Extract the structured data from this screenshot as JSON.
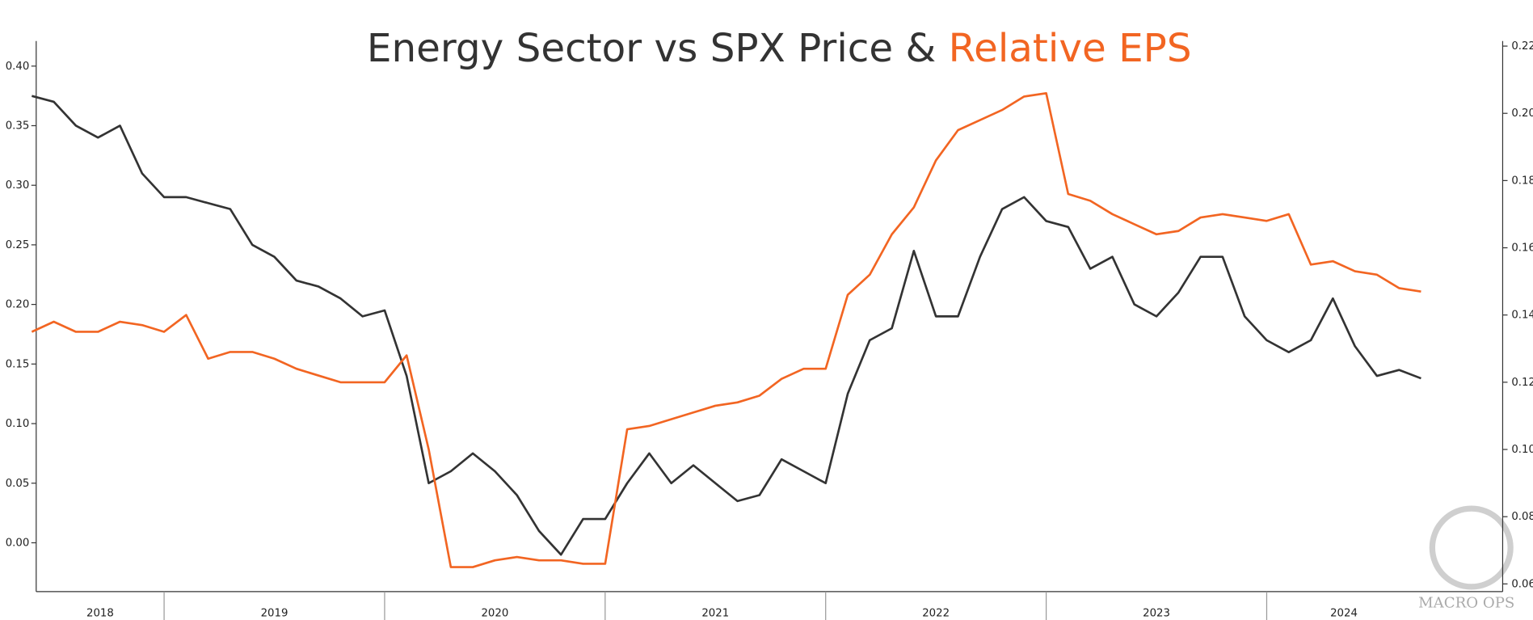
{
  "chart_data": {
    "type": "line",
    "title_connector": "&",
    "x": [
      2018.4,
      2018.5,
      2018.6,
      2018.7,
      2018.8,
      2018.9,
      2019.0,
      2019.1,
      2019.2,
      2019.3,
      2019.4,
      2019.5,
      2019.6,
      2019.7,
      2019.8,
      2019.9,
      2020.0,
      2020.1,
      2020.2,
      2020.3,
      2020.4,
      2020.5,
      2020.6,
      2020.7,
      2020.8,
      2020.9,
      2021.0,
      2021.1,
      2021.2,
      2021.3,
      2021.4,
      2021.5,
      2021.6,
      2021.7,
      2021.8,
      2021.9,
      2022.0,
      2022.1,
      2022.2,
      2022.3,
      2022.4,
      2022.5,
      2022.6,
      2022.7,
      2022.8,
      2022.9,
      2023.0,
      2023.1,
      2023.2,
      2023.3,
      2023.4,
      2023.5,
      2023.6,
      2023.7,
      2023.8,
      2023.9,
      2024.0,
      2024.1,
      2024.2,
      2024.3,
      2024.4,
      2024.5,
      2024.6,
      2024.7
    ],
    "series": [
      {
        "name": "Energy Sector vs SPX Price",
        "color": "#333333",
        "axis": "y",
        "values": [
          0.375,
          0.37,
          0.35,
          0.34,
          0.35,
          0.31,
          0.29,
          0.29,
          0.285,
          0.28,
          0.25,
          0.24,
          0.22,
          0.215,
          0.205,
          0.19,
          0.195,
          0.14,
          0.05,
          0.06,
          0.075,
          0.06,
          0.04,
          0.01,
          -0.01,
          0.02,
          0.02,
          0.05,
          0.075,
          0.05,
          0.065,
          0.05,
          0.035,
          0.04,
          0.07,
          0.06,
          0.05,
          0.125,
          0.17,
          0.18,
          0.245,
          0.19,
          0.19,
          0.24,
          0.28,
          0.29,
          0.27,
          0.265,
          0.23,
          0.24,
          0.2,
          0.19,
          0.21,
          0.24,
          0.24,
          0.19,
          0.17,
          0.16,
          0.17,
          0.205,
          0.165,
          0.14,
          0.145,
          0.138
        ]
      },
      {
        "name": "Relative EPS",
        "color": "#f26522",
        "axis": "y2",
        "values": [
          0.135,
          0.138,
          0.135,
          0.135,
          0.138,
          0.137,
          0.135,
          0.14,
          0.127,
          0.129,
          0.129,
          0.127,
          0.124,
          0.122,
          0.12,
          0.12,
          0.12,
          0.128,
          0.1,
          0.065,
          0.065,
          0.067,
          0.068,
          0.067,
          0.067,
          0.066,
          0.066,
          0.106,
          0.107,
          0.109,
          0.111,
          0.113,
          0.114,
          0.116,
          0.121,
          0.124,
          0.124,
          0.146,
          0.152,
          0.164,
          0.172,
          0.186,
          0.195,
          0.198,
          0.201,
          0.205,
          0.206,
          0.176,
          0.174,
          0.17,
          0.167,
          0.164,
          0.165,
          0.169,
          0.17,
          0.169,
          0.168,
          0.17,
          0.155,
          0.156,
          0.153,
          0.152,
          0.148,
          0.147
        ]
      }
    ],
    "xlim": [
      2018.42,
      2025.07
    ],
    "xticks": [
      2019,
      2020,
      2021,
      2022,
      2023,
      2024
    ],
    "x_labels": [
      "2018",
      "2019",
      "2020",
      "2021",
      "2022",
      "2023",
      "2024"
    ],
    "ylim": [
      -0.041,
      0.421
    ],
    "yticks": [
      {
        "value": 0,
        "label": "0.00"
      },
      {
        "value": 0.05,
        "label": "0.05"
      },
      {
        "value": 0.1,
        "label": "0.10"
      },
      {
        "value": 0.15,
        "label": "0.15"
      },
      {
        "value": 0.2,
        "label": "0.20"
      },
      {
        "value": 0.25,
        "label": "0.25"
      },
      {
        "value": 0.3,
        "label": "0.30"
      },
      {
        "value": 0.35,
        "label": "0.35"
      },
      {
        "value": 0.4,
        "label": "0.40"
      }
    ],
    "y2lim": [
      0.0577,
      0.2215
    ],
    "y2ticks": [
      {
        "value": 0.06,
        "label": "0.06"
      },
      {
        "value": 0.08,
        "label": "0.08"
      },
      {
        "value": 0.1,
        "label": "0.10"
      },
      {
        "value": 0.12,
        "label": "0.12"
      },
      {
        "value": 0.14,
        "label": "0.14"
      },
      {
        "value": 0.16,
        "label": "0.16"
      },
      {
        "value": 0.18,
        "label": "0.18"
      },
      {
        "value": 0.2,
        "label": "0.20"
      },
      {
        "value": 0.22,
        "label": "0.22"
      }
    ],
    "grid": false,
    "watermark": "MACRO OPS"
  }
}
